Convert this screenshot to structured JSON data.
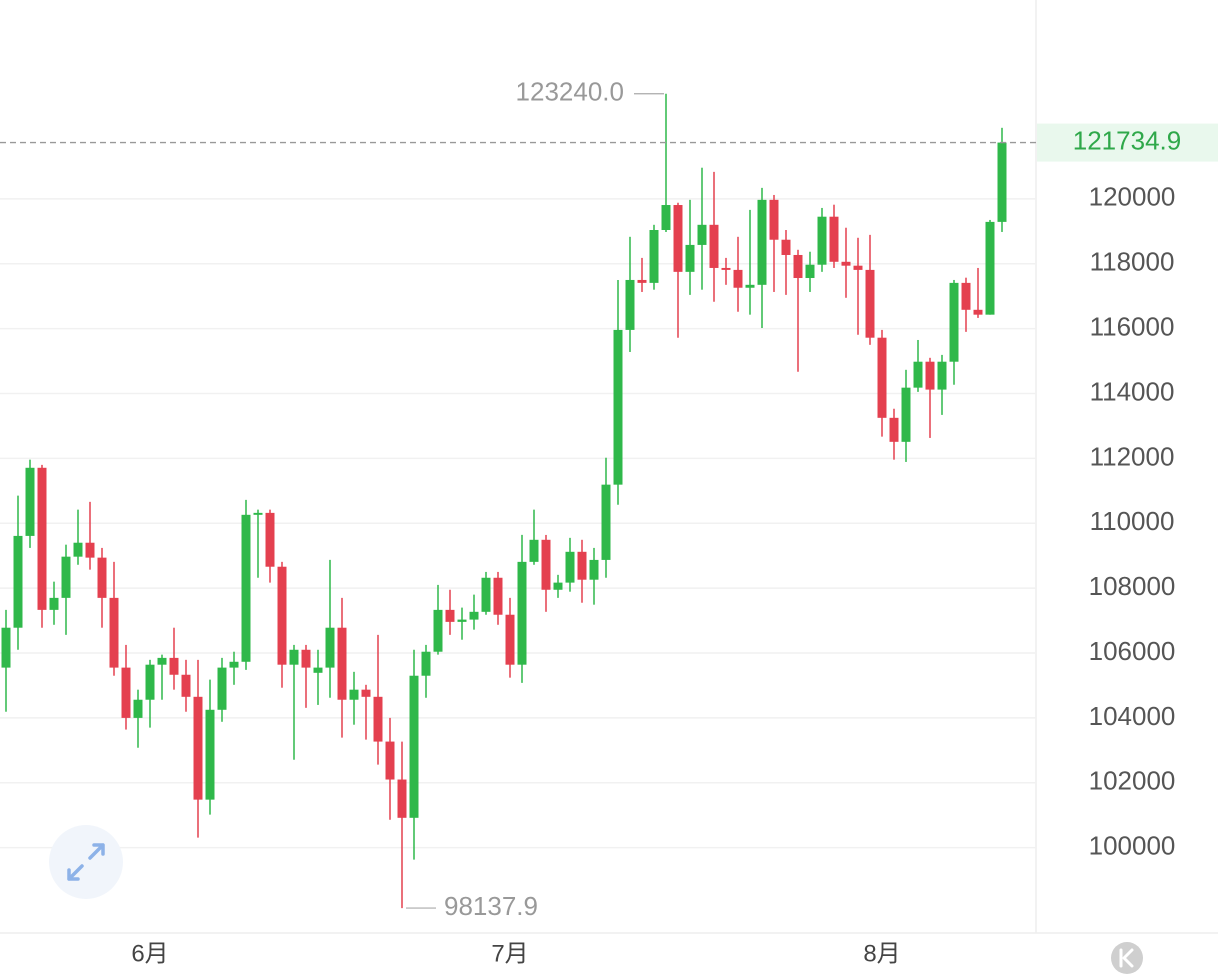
{
  "chart_data": {
    "type": "candlestick",
    "categories": [
      null,
      null,
      null,
      null,
      null,
      null,
      null,
      null,
      null,
      null,
      null,
      null,
      "6月",
      null,
      null,
      null,
      null,
      null,
      null,
      null,
      null,
      null,
      null,
      null,
      null,
      null,
      null,
      null,
      null,
      null,
      null,
      null,
      null,
      null,
      null,
      null,
      null,
      null,
      null,
      null,
      null,
      null,
      "7月",
      null,
      null,
      null,
      null,
      null,
      null,
      null,
      null,
      null,
      null,
      null,
      null,
      null,
      null,
      null,
      null,
      null,
      null,
      null,
      null,
      null,
      null,
      null,
      null,
      null,
      null,
      null,
      null,
      null,
      null,
      "8月",
      null,
      null,
      null,
      null,
      null,
      null,
      null,
      null,
      null,
      null
    ],
    "open": [
      105550,
      106780,
      109610,
      111710,
      107330,
      107700,
      108970,
      109400,
      108940,
      107700,
      105550,
      104000,
      104560,
      105640,
      105850,
      105330,
      104650,
      101480,
      104250,
      105550,
      105730,
      110260,
      110320,
      108660,
      105640,
      106100,
      105390,
      105550,
      106780,
      104560,
      104870,
      104650,
      103270,
      102100,
      100920,
      105300,
      106040,
      107330,
      106960,
      107030,
      107270,
      108320,
      107180,
      105640,
      108810,
      109490,
      107950,
      108170,
      109120,
      108260,
      108870,
      111190,
      115960,
      117500,
      117410,
      119040,
      119810,
      117750,
      118580,
      119200,
      117870,
      117810,
      117260,
      117350,
      119970,
      118740,
      118270,
      117560,
      117970,
      119450,
      118060,
      117940,
      117810,
      115720,
      113250,
      112510,
      114180,
      114980,
      114120,
      114980,
      117410,
      116580,
      116430,
      119290
    ],
    "high": [
      107330,
      110850,
      111960,
      111800,
      108200,
      109340,
      110420,
      110660,
      109240,
      108810,
      106250,
      104870,
      105790,
      105950,
      106780,
      105790,
      105790,
      105180,
      105850,
      106040,
      110720,
      110420,
      110420,
      108810,
      106250,
      106250,
      106100,
      108870,
      107700,
      105420,
      105020,
      106560,
      104000,
      103270,
      106100,
      106250,
      108100,
      107950,
      107400,
      107800,
      108500,
      108500,
      107700,
      109640,
      110420,
      109640,
      108410,
      109550,
      109490,
      109240,
      112020,
      117500,
      118830,
      118180,
      119200,
      123240,
      119880,
      119970,
      120960,
      120830,
      118180,
      118830,
      119660,
      120340,
      120120,
      119040,
      118430,
      118370,
      119720,
      119820,
      119110,
      118800,
      118890,
      115960,
      113530,
      114730,
      115650,
      115100,
      115190,
      117500,
      117570,
      117870,
      119350,
      122190
    ],
    "low": [
      104190,
      106100,
      109240,
      106780,
      106870,
      106560,
      108720,
      108570,
      106780,
      105300,
      103640,
      103080,
      103700,
      104560,
      104870,
      104190,
      100310,
      101020,
      103880,
      105020,
      105480,
      108320,
      108170,
      104930,
      102710,
      104310,
      104400,
      104620,
      103390,
      103790,
      103330,
      102560,
      100860,
      98137.9,
      99630,
      104620,
      105950,
      106560,
      106410,
      106720,
      107180,
      106870,
      105240,
      105080,
      108720,
      107270,
      107700,
      107890,
      107550,
      107490,
      108320,
      110570,
      115280,
      117130,
      117200,
      118980,
      115720,
      117040,
      117200,
      116830,
      117350,
      116520,
      116430,
      116020,
      117130,
      117040,
      114670,
      117130,
      117750,
      117870,
      116950,
      115810,
      115500,
      112670,
      111960,
      111890,
      114050,
      112630,
      113340,
      114270,
      115900,
      116330,
      116430,
      118980
    ],
    "close": [
      106780,
      109610,
      111710,
      107330,
      107700,
      108970,
      109400,
      108940,
      107700,
      105550,
      104000,
      104560,
      105640,
      105850,
      105330,
      104650,
      101480,
      104250,
      105550,
      105730,
      110260,
      110320,
      108660,
      105640,
      106100,
      105550,
      105550,
      106780,
      104560,
      104870,
      104650,
      103270,
      102100,
      100920,
      105300,
      106040,
      107330,
      106960,
      107030,
      107270,
      108320,
      107180,
      105640,
      108810,
      109490,
      107950,
      108170,
      109120,
      108260,
      108870,
      111190,
      115960,
      117500,
      117410,
      119040,
      119810,
      117750,
      118580,
      119200,
      117870,
      117810,
      117260,
      117350,
      119970,
      118740,
      118270,
      117560,
      117970,
      119450,
      118060,
      117940,
      117810,
      115720,
      113250,
      112510,
      114180,
      114980,
      114120,
      114980,
      117410,
      116580,
      116430,
      119290,
      121734.9
    ],
    "up_color": "#2fb84a",
    "down_color": "#e4404f",
    "ylim": [
      97400,
      126130
    ],
    "yticks": [
      100000,
      102000,
      104000,
      106000,
      108000,
      110000,
      112000,
      114000,
      116000,
      118000,
      120000
    ],
    "grid": true,
    "last_price": 121734.9,
    "annotations": [
      {
        "value": 123240,
        "label": "123240.0"
      },
      {
        "value": 98137.9,
        "label": "98137.9"
      }
    ]
  }
}
